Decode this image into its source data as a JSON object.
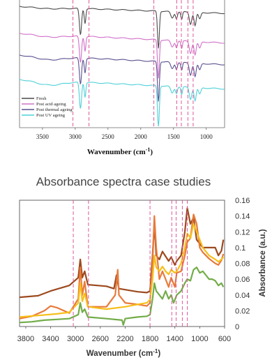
{
  "caption": "Absorbance spectra case studies",
  "chart_data": [
    {
      "type": "line",
      "title": "",
      "xlabel": "Wavenumber (cm-1)",
      "xlabel_main": "Wavenumber (cm",
      "xlabel_sup": "-1",
      "xlabel_close": ")",
      "ylabel": "",
      "xlim": [
        3850,
        720
      ],
      "xticks": [
        3500,
        3000,
        2500,
        2000,
        1500,
        1000
      ],
      "grid": false,
      "legend_position": "bottom-left",
      "series": [
        {
          "name": "Fresh",
          "color": "#4a4a4a",
          "offset": 0.95
        },
        {
          "name": "Post acid ageing",
          "color": "#d070c8",
          "offset": 0.74
        },
        {
          "name": "Post thermal ageing",
          "color": "#5a5090",
          "offset": 0.57
        },
        {
          "name": "Post UV ageing",
          "color": "#4fd0d8",
          "offset": 0.38
        }
      ]
    },
    {
      "type": "line",
      "title": "",
      "xlabel": "Wavenumber (cm-1)",
      "xlabel_main": "Wavenumber (cm",
      "xlabel_sup": "-1",
      "xlabel_close": ")",
      "ylabel": "Absorbance (a.u.)",
      "xlim": [
        3900,
        600
      ],
      "ylim": [
        0,
        0.16
      ],
      "xticks": [
        3800,
        3400,
        3000,
        2600,
        2200,
        1800,
        1400,
        1000,
        600
      ],
      "yticks": [
        0,
        0.02,
        0.04,
        0.06,
        0.08,
        0.1,
        0.12,
        0.14,
        0.16
      ],
      "grid": false,
      "series": [
        {
          "color": "#9c4a1e",
          "points": [
            [
              3900,
              0.037
            ],
            [
              3600,
              0.039
            ],
            [
              3400,
              0.045
            ],
            [
              3100,
              0.052
            ],
            [
              2955,
              0.062
            ],
            [
              2922,
              0.085
            ],
            [
              2890,
              0.062
            ],
            [
              2852,
              0.07
            ],
            [
              2800,
              0.053
            ],
            [
              2500,
              0.051
            ],
            [
              2380,
              0.048
            ],
            [
              2340,
              0.065
            ],
            [
              2300,
              0.048
            ],
            [
              2000,
              0.044
            ],
            [
              1850,
              0.043
            ],
            [
              1800,
              0.045
            ],
            [
              1760,
              0.09
            ],
            [
              1730,
              0.13
            ],
            [
              1700,
              0.09
            ],
            [
              1650,
              0.085
            ],
            [
              1600,
              0.095
            ],
            [
              1500,
              0.083
            ],
            [
              1460,
              0.088
            ],
            [
              1400,
              0.078
            ],
            [
              1370,
              0.083
            ],
            [
              1300,
              0.09
            ],
            [
              1240,
              0.12
            ],
            [
              1200,
              0.15
            ],
            [
              1150,
              0.13
            ],
            [
              1100,
              0.138
            ],
            [
              1050,
              0.11
            ],
            [
              950,
              0.1
            ],
            [
              850,
              0.1
            ],
            [
              750,
              0.1
            ],
            [
              700,
              0.09
            ],
            [
              650,
              0.096
            ],
            [
              620,
              0.11
            ]
          ]
        },
        {
          "color": "#e87a3a",
          "points": [
            [
              3900,
              0.01
            ],
            [
              3700,
              0.013
            ],
            [
              3500,
              0.02
            ],
            [
              3400,
              0.026
            ],
            [
              3300,
              0.024
            ],
            [
              3100,
              0.017
            ],
            [
              2955,
              0.035
            ],
            [
              2922,
              0.075
            ],
            [
              2890,
              0.04
            ],
            [
              2852,
              0.057
            ],
            [
              2800,
              0.025
            ],
            [
              2500,
              0.025
            ],
            [
              2360,
              0.04
            ],
            [
              2320,
              0.072
            ],
            [
              2300,
              0.04
            ],
            [
              2200,
              0.03
            ],
            [
              2000,
              0.028
            ],
            [
              1850,
              0.026
            ],
            [
              1800,
              0.03
            ],
            [
              1760,
              0.08
            ],
            [
              1730,
              0.14
            ],
            [
              1700,
              0.1
            ],
            [
              1650,
              0.06
            ],
            [
              1600,
              0.07
            ],
            [
              1550,
              0.06
            ],
            [
              1500,
              0.05
            ],
            [
              1460,
              0.062
            ],
            [
              1400,
              0.05
            ],
            [
              1370,
              0.068
            ],
            [
              1300,
              0.07
            ],
            [
              1240,
              0.09
            ],
            [
              1200,
              0.107
            ],
            [
              1150,
              0.112
            ],
            [
              1100,
              0.142
            ],
            [
              1050,
              0.13
            ],
            [
              1000,
              0.1
            ],
            [
              950,
              0.094
            ],
            [
              850,
              0.086
            ],
            [
              750,
              0.08
            ],
            [
              700,
              0.078
            ],
            [
              650,
              0.084
            ],
            [
              620,
              0.092
            ]
          ]
        },
        {
          "color": "#f6bf1a",
          "points": [
            [
              3900,
              0.012
            ],
            [
              3600,
              0.014
            ],
            [
              3300,
              0.016
            ],
            [
              3100,
              0.018
            ],
            [
              2955,
              0.03
            ],
            [
              2922,
              0.055
            ],
            [
              2890,
              0.032
            ],
            [
              2852,
              0.042
            ],
            [
              2800,
              0.025
            ],
            [
              2500,
              0.022
            ],
            [
              2200,
              0.025
            ],
            [
              2000,
              0.028
            ],
            [
              1850,
              0.03
            ],
            [
              1800,
              0.034
            ],
            [
              1760,
              0.06
            ],
            [
              1730,
              0.09
            ],
            [
              1700,
              0.075
            ],
            [
              1650,
              0.07
            ],
            [
              1600,
              0.076
            ],
            [
              1550,
              0.07
            ],
            [
              1500,
              0.066
            ],
            [
              1460,
              0.072
            ],
            [
              1400,
              0.068
            ],
            [
              1370,
              0.07
            ],
            [
              1300,
              0.08
            ],
            [
              1240,
              0.1
            ],
            [
              1200,
              0.118
            ],
            [
              1150,
              0.112
            ],
            [
              1100,
              0.13
            ],
            [
              1050,
              0.12
            ],
            [
              950,
              0.1
            ],
            [
              850,
              0.09
            ],
            [
              750,
              0.085
            ],
            [
              700,
              0.082
            ],
            [
              650,
              0.085
            ],
            [
              620,
              0.088
            ]
          ]
        },
        {
          "color": "#72ac48",
          "points": [
            [
              3900,
              0.005
            ],
            [
              3700,
              0.006
            ],
            [
              3500,
              0.008
            ],
            [
              3300,
              0.009
            ],
            [
              3100,
              0.01
            ],
            [
              2955,
              0.015
            ],
            [
              2922,
              0.03
            ],
            [
              2890,
              0.018
            ],
            [
              2852,
              0.022
            ],
            [
              2800,
              0.012
            ],
            [
              2500,
              0.01
            ],
            [
              2250,
              0.008
            ],
            [
              2230,
              0.002
            ],
            [
              2200,
              0.01
            ],
            [
              2000,
              0.012
            ],
            [
              1850,
              0.013
            ],
            [
              1800,
              0.015
            ],
            [
              1760,
              0.035
            ],
            [
              1730,
              0.055
            ],
            [
              1700,
              0.045
            ],
            [
              1650,
              0.04
            ],
            [
              1600,
              0.035
            ],
            [
              1550,
              0.045
            ],
            [
              1500,
              0.035
            ],
            [
              1460,
              0.04
            ],
            [
              1420,
              0.03
            ],
            [
              1370,
              0.04
            ],
            [
              1300,
              0.045
            ],
            [
              1240,
              0.055
            ],
            [
              1200,
              0.06
            ],
            [
              1150,
              0.058
            ],
            [
              1100,
              0.072
            ],
            [
              1050,
              0.075
            ],
            [
              1000,
              0.068
            ],
            [
              950,
              0.07
            ],
            [
              900,
              0.065
            ],
            [
              850,
              0.06
            ],
            [
              800,
              0.06
            ],
            [
              750,
              0.058
            ],
            [
              700,
              0.052
            ],
            [
              650,
              0.055
            ],
            [
              620,
              0.05
            ]
          ]
        }
      ]
    }
  ],
  "dashed_markers": {
    "color": "#e0569a",
    "wavenumbers": [
      3035,
      2790,
      1800,
      1450,
      1380,
      1280,
      1200
    ]
  }
}
